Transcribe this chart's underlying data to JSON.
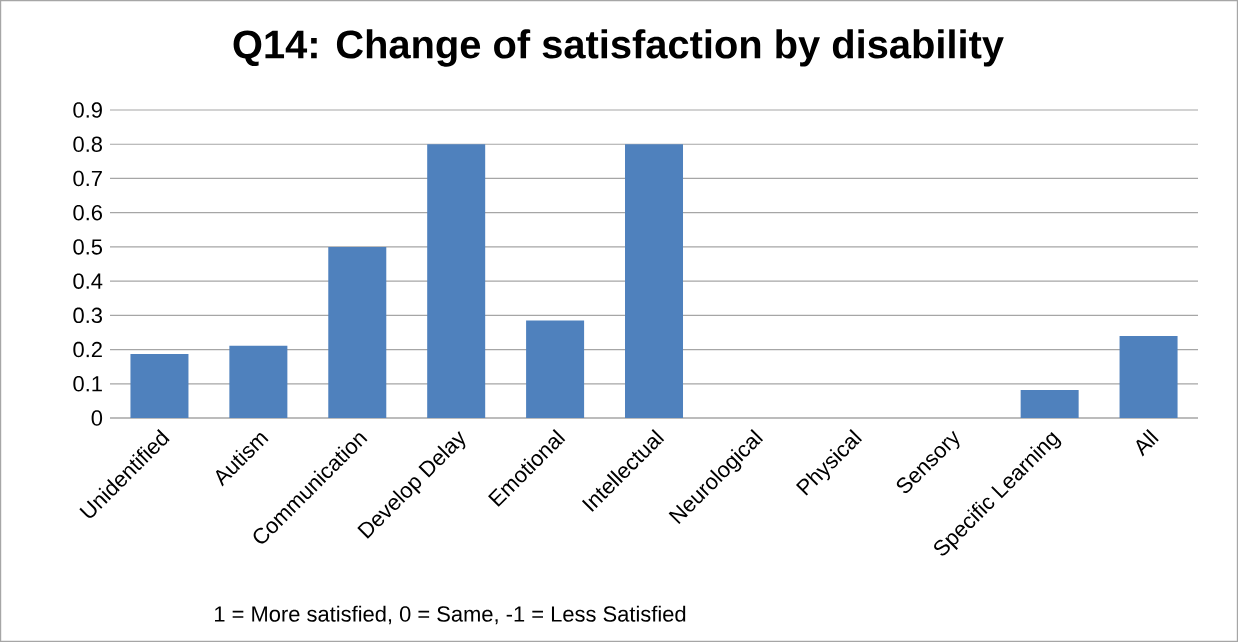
{
  "chart_data": {
    "type": "bar",
    "title": "Q14: Change of satisfaction by disability",
    "categories": [
      "Unidentified",
      "Autism",
      "Communication",
      "Develop Delay",
      "Emotional",
      "Intellectual",
      "Neurological",
      "Physical",
      "Sensory",
      "Specific Learning",
      "All"
    ],
    "values": [
      0.187,
      0.211,
      0.5,
      0.8,
      0.285,
      0.8,
      0,
      0,
      0,
      0.082,
      0.24
    ],
    "color": "#4f81bd",
    "ylim": [
      0,
      0.9
    ],
    "yticks": [
      0,
      0.1,
      0.2,
      0.3,
      0.4,
      0.5,
      0.6,
      0.7,
      0.8,
      0.9
    ],
    "grid": "y",
    "annotations": [
      "1 = More satisfied, 0 = Same, -1 = Less Satisfied"
    ]
  }
}
